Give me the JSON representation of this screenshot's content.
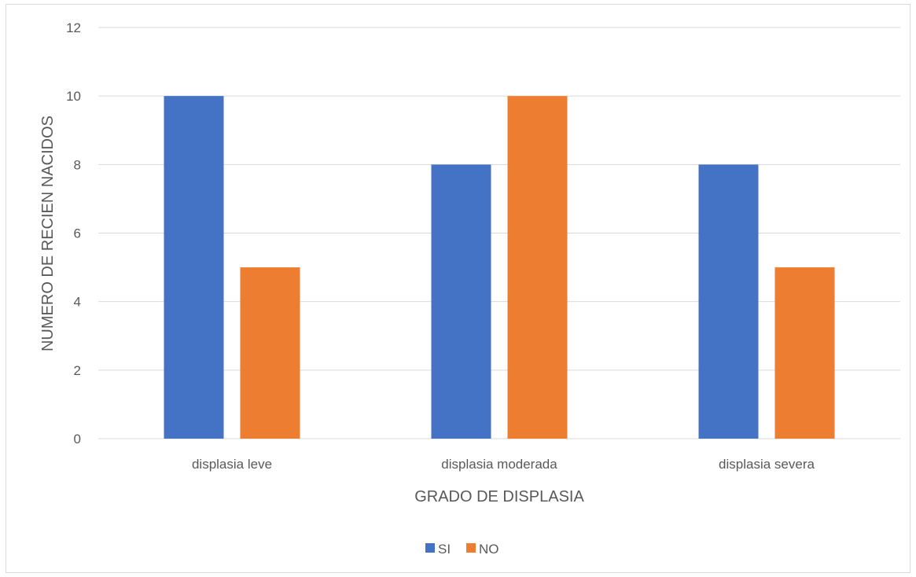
{
  "chart_data": {
    "type": "bar",
    "categories": [
      "displasia leve",
      "displasia moderada",
      "displasia severa"
    ],
    "series": [
      {
        "name": "SI",
        "values": [
          10,
          8,
          8
        ],
        "color": "#4472C4"
      },
      {
        "name": "NO",
        "values": [
          5,
          10,
          5
        ],
        "color": "#ED7D31"
      }
    ],
    "title": "",
    "xlabel": "GRADO DE DISPLASIA",
    "ylabel": "NUMERO DE RECIEN NACIDOS",
    "ylim": [
      0,
      12
    ],
    "yticks": [
      0,
      2,
      4,
      6,
      8,
      10,
      12
    ],
    "grid": true,
    "legend_position": "bottom",
    "gridline_color": "#d9d9d9",
    "text_color": "#595959"
  }
}
